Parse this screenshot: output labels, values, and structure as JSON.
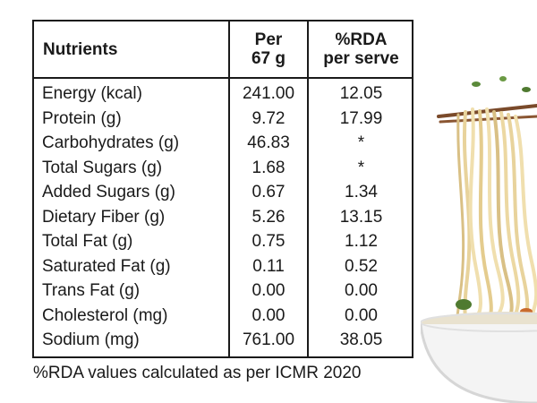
{
  "table": {
    "headers": {
      "nutrients": "Nutrients",
      "per_line1": "Per",
      "per_line2": "67 g",
      "rda_line1": "%RDA",
      "rda_line2": "per serve"
    },
    "rows": [
      {
        "name": "Energy (kcal)",
        "per": "241.00",
        "rda": "12.05"
      },
      {
        "name": "Protein (g)",
        "per": "9.72",
        "rda": "17.99"
      },
      {
        "name": "Carbohydrates (g)",
        "per": "46.83",
        "rda": "*"
      },
      {
        "name": "Total Sugars (g)",
        "per": "1.68",
        "rda": "*"
      },
      {
        "name": "Added Sugars (g)",
        "per": "0.67",
        "rda": "1.34"
      },
      {
        "name": "Dietary Fiber (g)",
        "per": "5.26",
        "rda": "13.15"
      },
      {
        "name": "Total Fat (g)",
        "per": "0.75",
        "rda": "1.12"
      },
      {
        "name": "Saturated Fat (g)",
        "per": "0.11",
        "rda": "0.52"
      },
      {
        "name": "Trans Fat (g)",
        "per": "0.00",
        "rda": "0.00"
      },
      {
        "name": "Cholesterol (mg)",
        "per": "0.00",
        "rda": "0.00"
      },
      {
        "name": "Sodium (mg)",
        "per": "761.00",
        "rda": "38.05"
      }
    ]
  },
  "footnote": "%RDA values calculated as per ICMR 2020",
  "illustration": {
    "icon": "noodle-bowl-icon",
    "colors": {
      "noodle": "#f0dfae",
      "noodle_shadow": "#d9c085",
      "bowl": "#f4f4f4",
      "bowl_shadow": "#d6d6d6",
      "chopsticks": "#7a4a2a",
      "greens": "#5b8a3a"
    }
  }
}
